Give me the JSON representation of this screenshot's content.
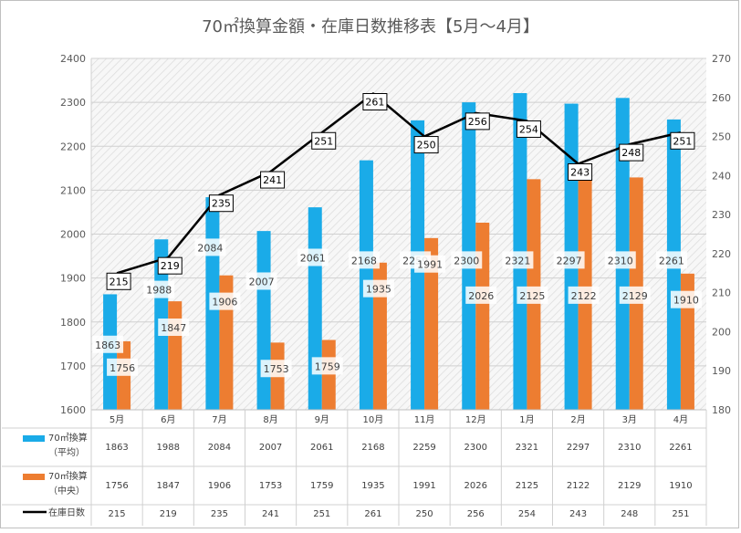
{
  "chart_data": {
    "type": "bar",
    "title": "70㎡換算金額・在庫日数推移表【5月～4月】",
    "categories": [
      "5月",
      "6月",
      "7月",
      "8月",
      "9月",
      "10月",
      "11月",
      "12月",
      "1月",
      "2月",
      "3月",
      "4月"
    ],
    "series": [
      {
        "name": "70㎡換算",
        "name_sub": "（平均）",
        "type": "bar",
        "axis": "left",
        "color": "#1aabe8",
        "values": [
          1863,
          1988,
          2084,
          2007,
          2061,
          2168,
          2259,
          2300,
          2321,
          2297,
          2310,
          2261
        ]
      },
      {
        "name": "70㎡換算",
        "name_sub": "（中央）",
        "type": "bar",
        "axis": "left",
        "color": "#ed7d31",
        "values": [
          1756,
          1847,
          1906,
          1753,
          1759,
          1935,
          1991,
          2026,
          2125,
          2122,
          2129,
          1910
        ]
      },
      {
        "name": "在庫日数",
        "type": "line",
        "axis": "right",
        "color": "#000000",
        "values": [
          215,
          219,
          235,
          241,
          251,
          261,
          250,
          256,
          254,
          243,
          248,
          251
        ]
      }
    ],
    "y_left": {
      "min": 1600,
      "max": 2400,
      "ticks": [
        1600,
        1700,
        1800,
        1900,
        2000,
        2100,
        2200,
        2300,
        2400
      ]
    },
    "y_right": {
      "min": 180,
      "max": 270,
      "ticks": [
        180,
        190,
        200,
        210,
        220,
        230,
        240,
        250,
        260,
        270
      ]
    },
    "legend": "data-table-below",
    "grid": true
  }
}
